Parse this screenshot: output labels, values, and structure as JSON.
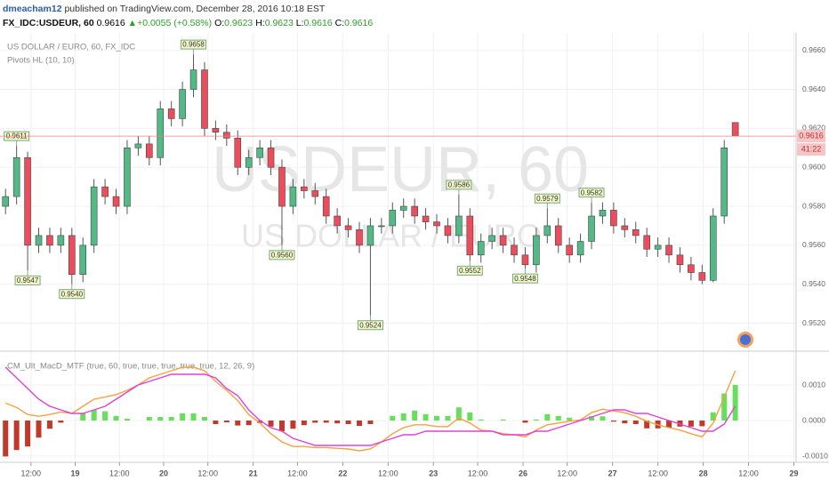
{
  "header": {
    "user": "dmeacham12",
    "published": "published on TradingView.com, December 28, 2016 10:18 EST",
    "symbol": "FX_IDC:USDEUR, 60",
    "last": "0.9616",
    "arrow": "▲",
    "change": "+0.0055 (+0.58%)",
    "o_label": "O:",
    "o_value": "0.9623",
    "h_label": "H:",
    "h_value": "0.9623",
    "l_label": "L:",
    "l_value": "0.9616",
    "c_label": "C:",
    "c_value": "0.9616"
  },
  "chart_data": [
    {
      "type": "candlestick",
      "title": "US DOLLAR / EURO, 60, FX_IDC",
      "indicator": "Pivots HL (10, 10)",
      "watermark": "USDEUR, 60",
      "watermark_sub": "US DOLLAR / EURO",
      "countdown": "41:22",
      "up_color": "#53b987",
      "down_color": "#eb4d5c",
      "price_line_color": "#f08080",
      "grid": true,
      "xlim": [
        0,
        72
      ],
      "ylim": [
        0.9507,
        0.9669
      ],
      "yticks": [
        {
          "value": 0.966,
          "label": "0.9660"
        },
        {
          "value": 0.964,
          "label": "0.9640"
        },
        {
          "value": 0.962,
          "label": "0.9620"
        },
        {
          "value": 0.96,
          "label": "0.9600"
        },
        {
          "value": 0.958,
          "label": "0.9580"
        },
        {
          "value": 0.956,
          "label": "0.9560"
        },
        {
          "value": 0.954,
          "label": "0.9540"
        },
        {
          "value": 0.952,
          "label": "0.9520"
        }
      ],
      "open": [
        0.958,
        0.9585,
        0.9605,
        0.956,
        0.9565,
        0.956,
        0.9565,
        0.9545,
        0.956,
        0.959,
        0.9585,
        0.958,
        0.961,
        0.9612,
        0.9605,
        0.963,
        0.9625,
        0.964,
        0.965,
        0.962,
        0.9618,
        0.9615,
        0.96,
        0.9605,
        0.961,
        0.96,
        0.958,
        0.959,
        0.9588,
        0.9585,
        0.9575,
        0.957,
        0.9568,
        0.956,
        0.957,
        0.957,
        0.9578,
        0.958,
        0.9575,
        0.9572,
        0.957,
        0.9565,
        0.9575,
        0.9555,
        0.9562,
        0.9565,
        0.956,
        0.9555,
        0.955,
        0.9565,
        0.957,
        0.956,
        0.9555,
        0.9562,
        0.9575,
        0.9578,
        0.957,
        0.9568,
        0.9565,
        0.9558,
        0.956,
        0.9555,
        0.955,
        0.9546,
        0.9542,
        0.9575,
        0.9623
      ],
      "high": [
        0.9589,
        0.9611,
        0.9608,
        0.9569,
        0.9569,
        0.9569,
        0.9569,
        0.9564,
        0.9594,
        0.9594,
        0.9589,
        0.9614,
        0.9616,
        0.9616,
        0.9634,
        0.9634,
        0.9644,
        0.9658,
        0.9654,
        0.9624,
        0.9622,
        0.9619,
        0.9609,
        0.9614,
        0.9614,
        0.9604,
        0.9594,
        0.9594,
        0.9592,
        0.9589,
        0.9579,
        0.9574,
        0.9572,
        0.9574,
        0.9574,
        0.9582,
        0.9584,
        0.9584,
        0.9579,
        0.9576,
        0.9574,
        0.9586,
        0.9579,
        0.9566,
        0.9569,
        0.9569,
        0.9564,
        0.9559,
        0.9569,
        0.9579,
        0.9574,
        0.9564,
        0.9566,
        0.9582,
        0.9582,
        0.9582,
        0.9574,
        0.9572,
        0.9569,
        0.9564,
        0.9564,
        0.9559,
        0.9554,
        0.955,
        0.9579,
        0.9614,
        0.9623
      ],
      "low": [
        0.9576,
        0.9581,
        0.9547,
        0.9556,
        0.9556,
        0.9556,
        0.954,
        0.9541,
        0.9556,
        0.9581,
        0.9576,
        0.9576,
        0.9606,
        0.9601,
        0.9601,
        0.9621,
        0.9621,
        0.9636,
        0.9616,
        0.9614,
        0.9611,
        0.9596,
        0.9596,
        0.9601,
        0.9596,
        0.956,
        0.9576,
        0.9584,
        0.9581,
        0.9571,
        0.9566,
        0.9564,
        0.9556,
        0.9524,
        0.9566,
        0.9566,
        0.9574,
        0.9571,
        0.9568,
        0.9566,
        0.9561,
        0.9561,
        0.9552,
        0.9551,
        0.9558,
        0.9556,
        0.9551,
        0.9548,
        0.9546,
        0.9561,
        0.9556,
        0.9551,
        0.9551,
        0.9558,
        0.9571,
        0.9566,
        0.9564,
        0.9561,
        0.9554,
        0.9554,
        0.9551,
        0.9546,
        0.9542,
        0.954,
        0.9541,
        0.9571,
        0.9616
      ],
      "close": [
        0.9585,
        0.9605,
        0.956,
        0.9565,
        0.956,
        0.9565,
        0.9545,
        0.956,
        0.959,
        0.9585,
        0.958,
        0.961,
        0.9612,
        0.9605,
        0.963,
        0.9625,
        0.964,
        0.965,
        0.962,
        0.9618,
        0.9615,
        0.96,
        0.9605,
        0.961,
        0.96,
        0.958,
        0.959,
        0.9588,
        0.9585,
        0.9575,
        0.957,
        0.9568,
        0.956,
        0.957,
        0.957,
        0.9578,
        0.958,
        0.9575,
        0.9572,
        0.957,
        0.9565,
        0.9575,
        0.9555,
        0.9562,
        0.9565,
        0.956,
        0.9555,
        0.955,
        0.9565,
        0.957,
        0.956,
        0.9555,
        0.9562,
        0.9575,
        0.9578,
        0.957,
        0.9568,
        0.9565,
        0.9558,
        0.956,
        0.9555,
        0.955,
        0.9546,
        0.9542,
        0.9575,
        0.961,
        0.9616
      ],
      "pivot_highs": [
        {
          "x": 1,
          "value": 0.9611
        },
        {
          "x": 17,
          "value": 0.9658
        },
        {
          "x": 41,
          "value": 0.9586
        },
        {
          "x": 49,
          "value": 0.9579
        },
        {
          "x": 53,
          "value": 0.9582
        }
      ],
      "pivot_lows": [
        {
          "x": 2,
          "value": 0.9547
        },
        {
          "x": 6,
          "value": 0.954,
          "label": "0.9540"
        },
        {
          "x": 25,
          "value": 0.956,
          "label": "0.9560"
        },
        {
          "x": 33,
          "value": 0.9524
        },
        {
          "x": 42,
          "value": 0.9552
        },
        {
          "x": 47,
          "value": 0.9548
        }
      ]
    },
    {
      "type": "macd",
      "title": "CM_Ult_MacD_MTF (true, 60, true, true, true, true, true, 12, 26, 9)",
      "grid": true,
      "xlim": [
        0,
        72
      ],
      "ylim": [
        -0.00115,
        0.0019
      ],
      "yticks": [
        {
          "value": 0.001,
          "label": "0.0010"
        },
        {
          "value": 0,
          "label": "0.0000"
        },
        {
          "value": -0.001,
          "label": "-0.0010"
        }
      ],
      "xticks": [
        {
          "value": 2.8,
          "label": "12:00"
        },
        {
          "value": 6.8,
          "label": "19"
        },
        {
          "value": 10.8,
          "label": "12:00"
        },
        {
          "value": 14.8,
          "label": "20"
        },
        {
          "value": 18.8,
          "label": "12:00"
        },
        {
          "value": 22.9,
          "label": "21"
        },
        {
          "value": 26.9,
          "label": "12:00"
        },
        {
          "value": 31.0,
          "label": "22"
        },
        {
          "value": 35.1,
          "label": "12:00"
        },
        {
          "value": 39.2,
          "label": "23"
        },
        {
          "value": 43.2,
          "label": "12:00"
        },
        {
          "value": 47.3,
          "label": "26"
        },
        {
          "value": 51.3,
          "label": "12:00"
        },
        {
          "value": 55.4,
          "label": "27"
        },
        {
          "value": 59.5,
          "label": "12:00"
        },
        {
          "value": 63.6,
          "label": "28"
        },
        {
          "value": 67.7,
          "label": "12:00"
        },
        {
          "value": 71.8,
          "label": "29"
        }
      ],
      "hist_up_color": "#66e05a",
      "hist_down_color": "#c0392b",
      "series": [
        {
          "color": "#f7a040",
          "values": [
            0.00049,
            0.00037,
            0.00017,
            0.00012,
            0.00017,
            0.00024,
            0.0002,
            0.0004,
            0.0006,
            0.00066,
            0.00073,
            0.00085,
            0.001,
            0.0012,
            0.0013,
            0.0014,
            0.0015,
            0.0015,
            0.0014,
            0.0011,
            0.00085,
            0.00056,
            0.00017,
            -7e-05,
            -0.00037,
            -0.0006,
            -0.00073,
            -0.00073,
            -0.00076,
            -0.00076,
            -0.00078,
            -0.0008,
            -0.00085,
            -0.0008,
            -0.0006,
            -0.00037,
            -0.0002,
            -0.00012,
            -0.00012,
            -0.00017,
            -0.00017,
            7e-05,
            -7e-05,
            -0.00027,
            -0.0003,
            -0.00037,
            -0.0004,
            -0.00046,
            -0.00027,
            -0.00012,
            -7e-05,
            -2e-05,
            2e-05,
            0.00022,
            0.00032,
            0.00027,
            0.00022,
            0.00012,
            -2e-05,
            -0.00012,
            -0.0002,
            -0.00027,
            -0.00037,
            -0.00046,
            -7e-05,
            0.00066,
            0.0014
          ]
        },
        {
          "color": "#e040d8",
          "values": [
            0.0015,
            0.0012,
            0.0009,
            0.0006,
            0.0004,
            0.0003,
            0.0002,
            0.0002,
            0.0003,
            0.0004,
            0.0006,
            0.0008,
            0.001,
            0.0011,
            0.0012,
            0.0013,
            0.0013,
            0.0013,
            0.0013,
            0.0012,
            0.0009,
            0.0007,
            0.0003,
            0,
            -0.0002,
            -0.0003,
            -0.0005,
            -0.0006,
            -0.0007,
            -0.0007,
            -0.0007,
            -0.0007,
            -0.0007,
            -0.0007,
            -0.0006,
            -0.0005,
            -0.0004,
            -0.0004,
            -0.0003,
            -0.0003,
            -0.0003,
            -0.0003,
            -0.0003,
            -0.0003,
            -0.0003,
            -0.0004,
            -0.0004,
            -0.0004,
            -0.0003,
            -0.0003,
            -0.0002,
            -0.0001,
            0,
            0.0001,
            0.0002,
            0.0003,
            0.0003,
            0.0002,
            0.0002,
            0.0001,
            0,
            -0.0001,
            -0.0002,
            -0.0003,
            -0.0003,
            -0.0001,
            0.0004
          ]
        },
        {
          "values": [
            -0.00101,
            -0.00083,
            -0.00073,
            -0.00048,
            -0.00023,
            -6e-05,
            0,
            0.0002,
            0.0003,
            0.00026,
            0.00013,
            5e-05,
            0,
            0.0001,
            0.0001,
            0.0001,
            0.0002,
            0.0002,
            0.0001,
            -0.0001,
            -5e-05,
            -0.00014,
            -0.00013,
            -7e-05,
            -0.00017,
            -0.0003,
            -0.00023,
            -0.00013,
            -6e-05,
            -6e-05,
            -8e-05,
            -0.0001,
            -0.00015,
            -0.0001,
            0,
            0.00013,
            0.0002,
            0.00028,
            0.00018,
            0.00013,
            0.00013,
            0.00037,
            0.00023,
            3e-05,
            0,
            3e-05,
            0,
            -6e-05,
            3e-05,
            0.00018,
            0.00013,
            8e-05,
            2e-05,
            0.00012,
            0.00012,
            -3e-05,
            -8e-05,
            -0.0001,
            -0.00022,
            -0.00022,
            -0.0002,
            -0.00017,
            -0.00017,
            -0.00016,
            0.00023,
            0.00076,
            0.001
          ]
        }
      ]
    }
  ]
}
